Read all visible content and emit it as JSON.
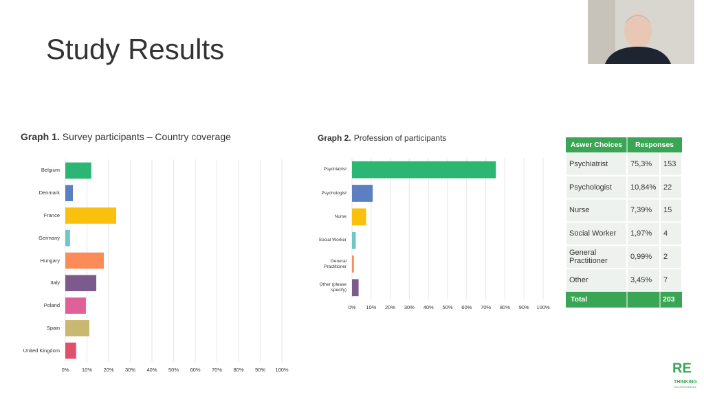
{
  "slide_title": "Study Results",
  "chart_data": [
    {
      "type": "bar",
      "orientation": "horizontal",
      "title_number": "Graph 1.",
      "title": "Survey participants – Country coverage",
      "categories": [
        "Belgium",
        "Denmark",
        "France",
        "Germany",
        "Hungary",
        "Italy",
        "Poland",
        "Spain",
        "United Kingdom"
      ],
      "values": [
        12,
        3.5,
        23.5,
        2.2,
        17.8,
        14.3,
        9.5,
        11.1,
        5
      ],
      "colors": [
        "#2bb673",
        "#5b7fc0",
        "#f9c10e",
        "#6dc9c9",
        "#fb8c5a",
        "#7d5a8c",
        "#e0609a",
        "#c9b870",
        "#e0506a"
      ],
      "xlim": [
        0,
        100
      ],
      "xticks": [
        {
          "value": 0,
          "label": "0%"
        },
        {
          "value": 10,
          "label": "10%"
        },
        {
          "value": 20,
          "label": "20%"
        },
        {
          "value": 30,
          "label": "30%"
        },
        {
          "value": 40,
          "label": "40%"
        },
        {
          "value": 50,
          "label": "50%"
        },
        {
          "value": 60,
          "label": "60%"
        },
        {
          "value": 70,
          "label": "70%"
        },
        {
          "value": 80,
          "label": "80%"
        },
        {
          "value": 90,
          "label": "90%"
        },
        {
          "value": 100,
          "label": "100%"
        }
      ],
      "grid": true
    },
    {
      "type": "bar",
      "orientation": "horizontal",
      "title_number": "Graph 2.",
      "title": "Profession of participants",
      "categories": [
        "Psychiatrist",
        "Psychologist",
        "Nurse",
        "Social Worker",
        "General Practitioner",
        "Other (please specify)"
      ],
      "values": [
        75.3,
        10.84,
        7.39,
        1.97,
        0.99,
        3.45
      ],
      "colors": [
        "#2bb673",
        "#5b7fc0",
        "#f9c10e",
        "#6dc9c9",
        "#fb8c5a",
        "#7d5a8c"
      ],
      "xlim": [
        0,
        100
      ],
      "xticks": [
        {
          "value": 0,
          "label": "0%"
        },
        {
          "value": 10,
          "label": "10%"
        },
        {
          "value": 20,
          "label": "20%"
        },
        {
          "value": 30,
          "label": "30%"
        },
        {
          "value": 40,
          "label": "40%"
        },
        {
          "value": 50,
          "label": "50%"
        },
        {
          "value": 60,
          "label": "60%"
        },
        {
          "value": 70,
          "label": "70%"
        },
        {
          "value": 80,
          "label": "80%"
        },
        {
          "value": 90,
          "label": "90%"
        },
        {
          "value": 100,
          "label": "100%"
        }
      ],
      "grid": true
    }
  ],
  "table": {
    "header": [
      "Aswer Choices",
      "Responses"
    ],
    "rows": [
      [
        "Psychiatrist",
        "75,3%",
        153
      ],
      [
        "Psychologist",
        "10,84%",
        22
      ],
      [
        "Nurse",
        "7,39%",
        15
      ],
      [
        "Social Worker",
        "1,97%",
        4
      ],
      [
        "General Practitioner",
        "0,99%",
        2
      ],
      [
        "Other",
        "3,45%",
        7
      ]
    ],
    "total": [
      "Total",
      203
    ]
  },
  "logo": {
    "line1": "RE",
    "line2": "THINKING",
    "line3": "SCHIZOPHRENIA"
  }
}
